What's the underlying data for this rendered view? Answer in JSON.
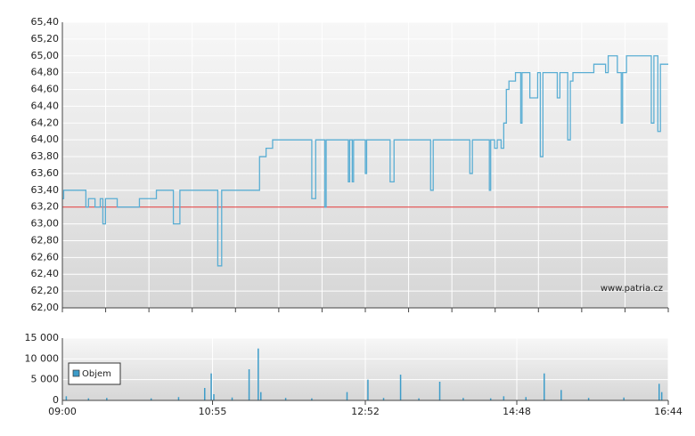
{
  "chart_data": [
    {
      "type": "line",
      "step": true,
      "color": "#5aaed4",
      "x": [
        "09:00",
        "09:01",
        "09:18",
        "09:20",
        "09:25",
        "09:29",
        "09:31",
        "09:33",
        "09:42",
        "09:59",
        "10:12",
        "10:25",
        "10:30",
        "10:59",
        "11:02",
        "11:31",
        "11:36",
        "11:41",
        "12:11",
        "12:14",
        "12:21",
        "12:22",
        "12:39",
        "12:40",
        "12:42",
        "12:43",
        "12:52",
        "12:53",
        "13:11",
        "13:14",
        "13:42",
        "13:44",
        "14:12",
        "14:14",
        "14:27",
        "14:28",
        "14:31",
        "14:33",
        "14:36",
        "14:38",
        "14:40",
        "14:42",
        "14:47",
        "14:51",
        "14:52",
        "14:58",
        "15:04",
        "15:06",
        "15:08",
        "15:19",
        "15:21",
        "15:27",
        "15:29",
        "15:31",
        "15:47",
        "15:56",
        "15:58",
        "16:05",
        "16:08",
        "16:09",
        "16:12",
        "16:31",
        "16:33",
        "16:36",
        "16:38",
        "16:44"
      ],
      "values": [
        63.3,
        63.4,
        63.2,
        63.3,
        63.2,
        63.3,
        63.0,
        63.3,
        63.2,
        63.3,
        63.4,
        63.0,
        63.4,
        62.5,
        63.4,
        63.8,
        63.9,
        64.0,
        63.3,
        64.0,
        63.2,
        64.0,
        63.5,
        64.0,
        63.5,
        64.0,
        63.6,
        64.0,
        63.5,
        64.0,
        63.4,
        64.0,
        63.6,
        64.0,
        63.4,
        64.0,
        63.9,
        64.0,
        63.9,
        64.2,
        64.6,
        64.7,
        64.8,
        64.2,
        64.8,
        64.5,
        64.8,
        63.8,
        64.8,
        64.5,
        64.8,
        64.0,
        64.7,
        64.8,
        64.9,
        64.8,
        65.0,
        64.8,
        64.2,
        64.8,
        65.0,
        64.2,
        65.0,
        64.1,
        64.9,
        64.9
      ],
      "xlim": [
        "09:00",
        "16:44"
      ],
      "ylim": [
        62.0,
        65.4
      ],
      "yticks": [
        {
          "value": 62.0,
          "label": "62,00"
        },
        {
          "value": 62.2,
          "label": "62,20"
        },
        {
          "value": 62.4,
          "label": "62,40"
        },
        {
          "value": 62.6,
          "label": "62,60"
        },
        {
          "value": 62.8,
          "label": "62,80"
        },
        {
          "value": 63.0,
          "label": "63,00"
        },
        {
          "value": 63.2,
          "label": "63,20"
        },
        {
          "value": 63.4,
          "label": "63,40"
        },
        {
          "value": 63.6,
          "label": "63,60"
        },
        {
          "value": 63.8,
          "label": "63,80"
        },
        {
          "value": 64.0,
          "label": "64,00"
        },
        {
          "value": 64.2,
          "label": "64,20"
        },
        {
          "value": 64.4,
          "label": "64,40"
        },
        {
          "value": 64.6,
          "label": "64,60"
        },
        {
          "value": 64.8,
          "label": "64,80"
        },
        {
          "value": 65.0,
          "label": "65,00"
        },
        {
          "value": 65.2,
          "label": "65,20"
        },
        {
          "value": 65.4,
          "label": "65,40"
        }
      ],
      "reference_line": 63.2,
      "reference_color": "#d33",
      "grid": true,
      "annotation": "www.patria.cz"
    },
    {
      "type": "bar",
      "x": [
        "09:03",
        "09:20",
        "09:34",
        "10:08",
        "10:29",
        "10:49",
        "10:54",
        "10:56",
        "11:10",
        "11:23",
        "11:30",
        "11:32",
        "11:51",
        "12:11",
        "12:38",
        "12:54",
        "13:06",
        "13:19",
        "13:33",
        "13:49",
        "14:07",
        "14:28",
        "14:38",
        "14:55",
        "15:09",
        "15:22",
        "15:43",
        "16:10",
        "16:37",
        "16:39"
      ],
      "series": [
        {
          "name": "Objem",
          "color": "#3d9cc9",
          "values": [
            1000,
            500,
            600,
            500,
            800,
            3000,
            6500,
            1500,
            700,
            7500,
            12500,
            2000,
            600,
            500,
            2000,
            5000,
            600,
            6200,
            500,
            4500,
            600,
            500,
            1000,
            800,
            6500,
            2500,
            600,
            700,
            4000,
            2000
          ]
        }
      ],
      "xlim": [
        "09:00",
        "16:44"
      ],
      "xticks": [
        "09:00",
        "10:55",
        "12:52",
        "14:48",
        "16:44"
      ],
      "ylim": [
        0,
        15000
      ],
      "yticks": [
        0,
        {
          "value": 5000,
          "label": "5 000"
        },
        {
          "value": 10000,
          "label": "10 000"
        },
        {
          "value": 15000,
          "label": "15 000"
        }
      ],
      "grid": true,
      "legend": "top-left"
    }
  ]
}
